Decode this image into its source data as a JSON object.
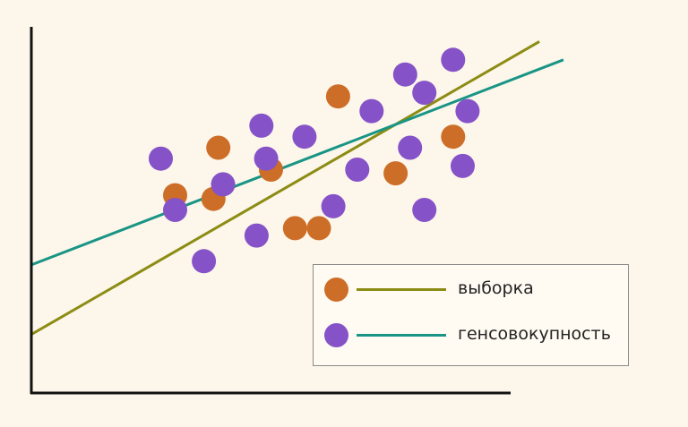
{
  "chart_data": {
    "type": "scatter",
    "title": "",
    "xlabel": "",
    "ylabel": "",
    "xlim": [
      0,
      100
    ],
    "ylim": [
      0,
      100
    ],
    "grid": false,
    "legend_position": "bottom-right",
    "series": [
      {
        "name": "выборка",
        "color": "#cd6e28",
        "points": [
          {
            "x": 30,
            "y": 54
          },
          {
            "x": 39,
            "y": 67
          },
          {
            "x": 50,
            "y": 61
          },
          {
            "x": 60,
            "y": 45
          },
          {
            "x": 64,
            "y": 81
          },
          {
            "x": 76,
            "y": 60
          },
          {
            "x": 88,
            "y": 70
          },
          {
            "x": 38,
            "y": 53
          },
          {
            "x": 55,
            "y": 45
          }
        ],
        "trend": {
          "color": "#8c8c14",
          "from": {
            "x": 0,
            "y": 16
          },
          "to": {
            "x": 106,
            "y": 96
          }
        }
      },
      {
        "name": "генсовокупность",
        "color": "#8552c8",
        "points": [
          {
            "x": 27,
            "y": 64
          },
          {
            "x": 30,
            "y": 50
          },
          {
            "x": 40,
            "y": 57
          },
          {
            "x": 36,
            "y": 36
          },
          {
            "x": 48,
            "y": 73
          },
          {
            "x": 49,
            "y": 64
          },
          {
            "x": 47,
            "y": 43
          },
          {
            "x": 57,
            "y": 70
          },
          {
            "x": 63,
            "y": 51
          },
          {
            "x": 71,
            "y": 77
          },
          {
            "x": 68,
            "y": 61
          },
          {
            "x": 78,
            "y": 87
          },
          {
            "x": 82,
            "y": 82
          },
          {
            "x": 79,
            "y": 67
          },
          {
            "x": 82,
            "y": 50
          },
          {
            "x": 88,
            "y": 91
          },
          {
            "x": 91,
            "y": 77
          },
          {
            "x": 90,
            "y": 62
          }
        ],
        "trend": {
          "color": "#189585",
          "from": {
            "x": 0,
            "y": 35
          },
          "to": {
            "x": 111,
            "y": 91
          }
        }
      }
    ]
  }
}
